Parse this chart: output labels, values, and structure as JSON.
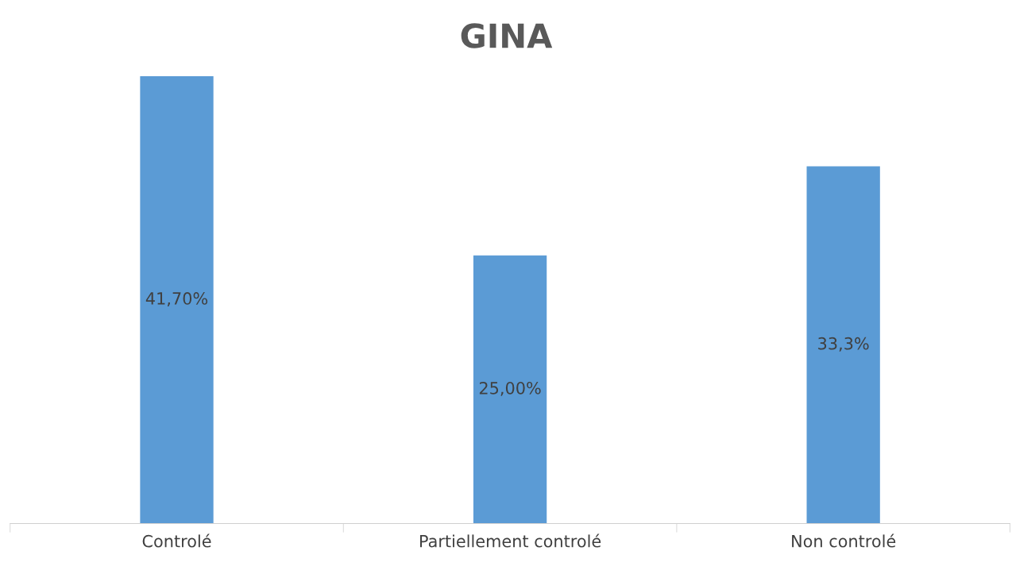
{
  "chart_data": {
    "type": "bar",
    "title": "GINA",
    "categories": [
      "Controlé",
      "Partiellement controlé",
      "Non controlé"
    ],
    "values": [
      41.7,
      25.0,
      33.3
    ],
    "value_labels": [
      "41,70%",
      "25,00%",
      "33,3%"
    ],
    "color": "#5b9bd5",
    "grid": false,
    "legend": false
  }
}
